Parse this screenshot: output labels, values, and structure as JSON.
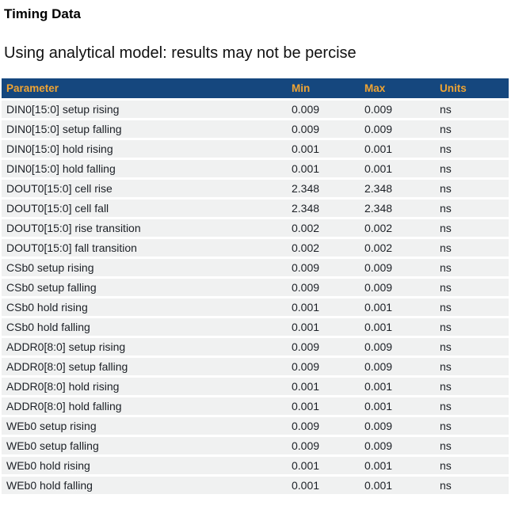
{
  "page": {
    "title": "Timing Data",
    "subtitle": "Using analytical model: results may not be percise"
  },
  "colors": {
    "header_bg": "#15477E",
    "header_text": "#F0A433",
    "row_bg": "#F0F1F1",
    "row_text": "#1C2026",
    "page_bg": "#FFFFFF"
  },
  "table": {
    "columns": [
      "Parameter",
      "Min",
      "Max",
      "Units"
    ],
    "rows": [
      {
        "parameter": "DIN0[15:0] setup rising",
        "min": "0.009",
        "max": "0.009",
        "units": "ns"
      },
      {
        "parameter": "DIN0[15:0] setup falling",
        "min": "0.009",
        "max": "0.009",
        "units": "ns"
      },
      {
        "parameter": "DIN0[15:0] hold rising",
        "min": "0.001",
        "max": "0.001",
        "units": "ns"
      },
      {
        "parameter": "DIN0[15:0] hold falling",
        "min": "0.001",
        "max": "0.001",
        "units": "ns"
      },
      {
        "parameter": "DOUT0[15:0] cell rise",
        "min": "2.348",
        "max": "2.348",
        "units": "ns"
      },
      {
        "parameter": "DOUT0[15:0] cell fall",
        "min": "2.348",
        "max": "2.348",
        "units": "ns"
      },
      {
        "parameter": "DOUT0[15:0] rise transition",
        "min": "0.002",
        "max": "0.002",
        "units": "ns"
      },
      {
        "parameter": "DOUT0[15:0] fall transition",
        "min": "0.002",
        "max": "0.002",
        "units": "ns"
      },
      {
        "parameter": "CSb0 setup rising",
        "min": "0.009",
        "max": "0.009",
        "units": "ns"
      },
      {
        "parameter": "CSb0 setup falling",
        "min": "0.009",
        "max": "0.009",
        "units": "ns"
      },
      {
        "parameter": "CSb0 hold rising",
        "min": "0.001",
        "max": "0.001",
        "units": "ns"
      },
      {
        "parameter": "CSb0 hold falling",
        "min": "0.001",
        "max": "0.001",
        "units": "ns"
      },
      {
        "parameter": "ADDR0[8:0] setup rising",
        "min": "0.009",
        "max": "0.009",
        "units": "ns"
      },
      {
        "parameter": "ADDR0[8:0] setup falling",
        "min": "0.009",
        "max": "0.009",
        "units": "ns"
      },
      {
        "parameter": "ADDR0[8:0] hold rising",
        "min": "0.001",
        "max": "0.001",
        "units": "ns"
      },
      {
        "parameter": "ADDR0[8:0] hold falling",
        "min": "0.001",
        "max": "0.001",
        "units": "ns"
      },
      {
        "parameter": "WEb0 setup rising",
        "min": "0.009",
        "max": "0.009",
        "units": "ns"
      },
      {
        "parameter": "WEb0 setup falling",
        "min": "0.009",
        "max": "0.009",
        "units": "ns"
      },
      {
        "parameter": "WEb0 hold rising",
        "min": "0.001",
        "max": "0.001",
        "units": "ns"
      },
      {
        "parameter": "WEb0 hold falling",
        "min": "0.001",
        "max": "0.001",
        "units": "ns"
      }
    ]
  }
}
